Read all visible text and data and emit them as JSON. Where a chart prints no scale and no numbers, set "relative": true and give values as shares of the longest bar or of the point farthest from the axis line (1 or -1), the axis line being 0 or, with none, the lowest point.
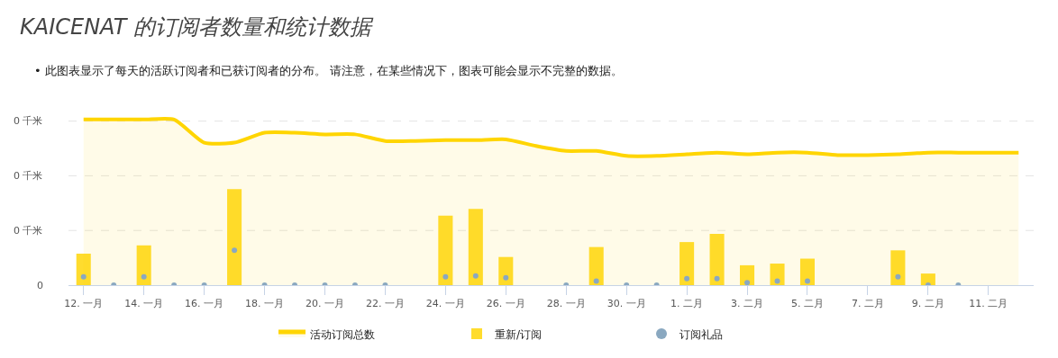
{
  "chart_data": {
    "type": "bar",
    "title": "KAICENAT 的订阅者数量和统计数据",
    "subtitle": "• 此图表显示了每天的活跃订阅者和已获订阅者的分布。 请注意，在某些情况下，图表可能会显示不完整的数据。",
    "categories": [
      "12. 一月",
      null,
      "14. 一月",
      null,
      "16. 一月",
      null,
      "18. 一月",
      null,
      "20. 一月",
      null,
      "22. 一月",
      null,
      "24. 一月",
      null,
      "26. 一月",
      null,
      "28. 一月",
      null,
      "30. 一月",
      null,
      "1. 二月",
      null,
      "3. 二月",
      null,
      "5. 二月",
      null,
      "7. 二月",
      null,
      "9. 二月",
      null,
      "11. 二月",
      null
    ],
    "relative": true,
    "annotations": [
      "0"
    ],
    "ref_lines": [
      {
        "axis": "y",
        "value": 0.99,
        "label": "0 千米",
        "color": "#e4e4e4",
        "line_style": "dashed"
      },
      {
        "axis": "y",
        "value": 0.66,
        "label": "0 千米",
        "color": "#e4e4e4",
        "line_style": "dashed"
      },
      {
        "axis": "y",
        "value": 0.33,
        "label": "0 千米",
        "color": "#e4e4e4",
        "line_style": "dashed"
      }
    ],
    "legend": "bottom",
    "series": [
      {
        "name": "活动订阅总数",
        "type": "area",
        "color": "#ffd500",
        "values": [
          1.0,
          1.0,
          1.0,
          1.0,
          0.86,
          0.86,
          0.92,
          0.92,
          0.91,
          0.91,
          0.87,
          0.87,
          0.875,
          0.875,
          0.88,
          0.84,
          0.81,
          0.81,
          0.78,
          0.78,
          0.79,
          0.8,
          0.79,
          0.8,
          0.8,
          0.785,
          0.785,
          0.79,
          0.8,
          0.8,
          0.8,
          0.8
        ]
      },
      {
        "name": "重新/订阅",
        "type": "bar",
        "color": "#ffdc2e",
        "values": [
          0.19,
          null,
          0.24,
          null,
          null,
          0.58,
          null,
          null,
          null,
          null,
          null,
          null,
          0.42,
          0.46,
          0.17,
          null,
          null,
          0.23,
          null,
          null,
          0.26,
          0.31,
          0.12,
          0.13,
          0.16,
          null,
          null,
          0.21,
          0.07,
          null,
          null,
          null
        ]
      },
      {
        "name": "订阅礼品",
        "type": "scatter",
        "marker": "circle",
        "color": "#8aa8c0",
        "values": [
          0.05,
          0,
          0.05,
          0,
          0,
          0.21,
          0,
          0,
          0,
          0,
          0,
          null,
          0.05,
          0.055,
          0.045,
          null,
          0,
          0.025,
          0,
          0,
          0.04,
          0.04,
          0.015,
          0.025,
          0.025,
          null,
          null,
          0.05,
          0,
          0,
          null,
          null
        ]
      }
    ]
  }
}
